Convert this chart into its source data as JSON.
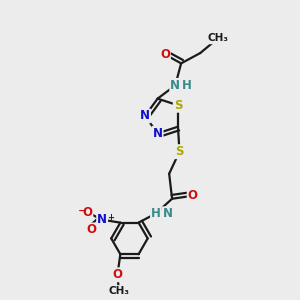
{
  "bg_color": "#ececec",
  "bond_color": "#1a1a1a",
  "bond_width": 1.6,
  "colors": {
    "C": "#1a1a1a",
    "N": "#1010cc",
    "O": "#cc1010",
    "S": "#aaaa00",
    "NH": "#3a8a8a",
    "H": "#3a8a8a"
  },
  "fs": 8.5
}
